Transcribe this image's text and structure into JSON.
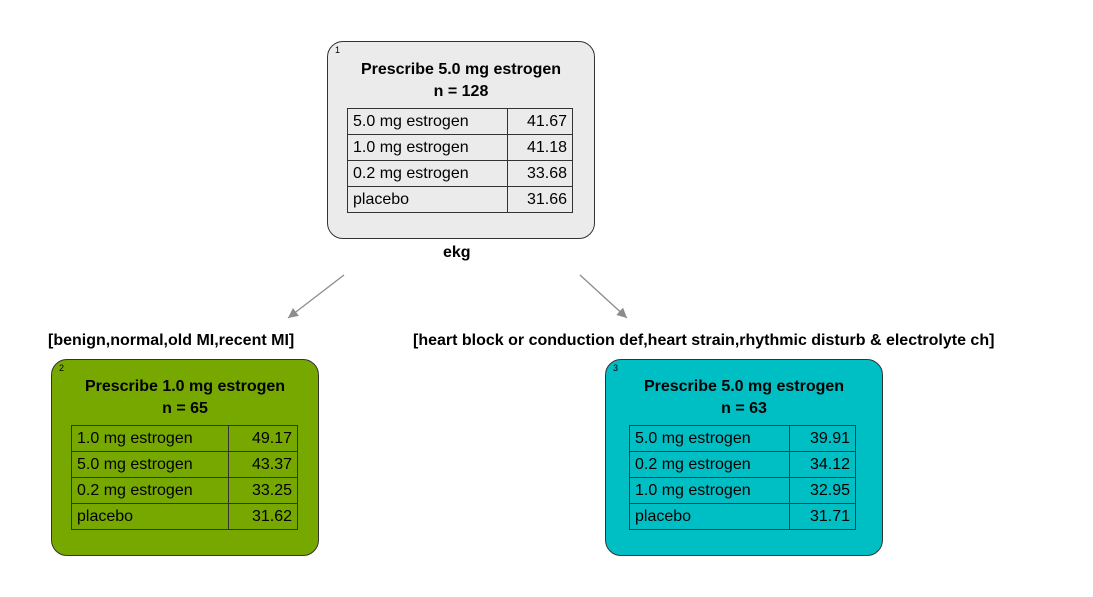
{
  "colors": {
    "root_fill": "#ebebeb",
    "left_fill": "#77a800",
    "right_fill": "#00bfc4",
    "edge": "#8c8c8c"
  },
  "root": {
    "id": "1",
    "title": "Prescribe 5.0 mg estrogen",
    "n": "n = 128",
    "rows": [
      {
        "label": "5.0 mg estrogen",
        "value": "41.67"
      },
      {
        "label": "1.0 mg estrogen",
        "value": "41.18"
      },
      {
        "label": "0.2 mg estrogen",
        "value": "33.68"
      },
      {
        "label": "placebo",
        "value": "31.66"
      }
    ],
    "split_variable": "ekg"
  },
  "left": {
    "id": "2",
    "edge_label": "[benign,normal,old MI,recent MI]",
    "title": "Prescribe 1.0 mg estrogen",
    "n": "n = 65",
    "rows": [
      {
        "label": "1.0 mg estrogen",
        "value": "49.17"
      },
      {
        "label": "5.0 mg estrogen",
        "value": "43.37"
      },
      {
        "label": "0.2 mg estrogen",
        "value": "33.25"
      },
      {
        "label": "placebo",
        "value": "31.62"
      }
    ]
  },
  "right": {
    "id": "3",
    "edge_label": "[heart block or conduction def,heart strain,rhythmic disturb & electrolyte ch]",
    "title": "Prescribe 5.0 mg estrogen",
    "n": "n = 63",
    "rows": [
      {
        "label": "5.0 mg estrogen",
        "value": "39.91"
      },
      {
        "label": "0.2 mg estrogen",
        "value": "34.12"
      },
      {
        "label": "1.0 mg estrogen",
        "value": "32.95"
      },
      {
        "label": "placebo",
        "value": "31.71"
      }
    ]
  }
}
